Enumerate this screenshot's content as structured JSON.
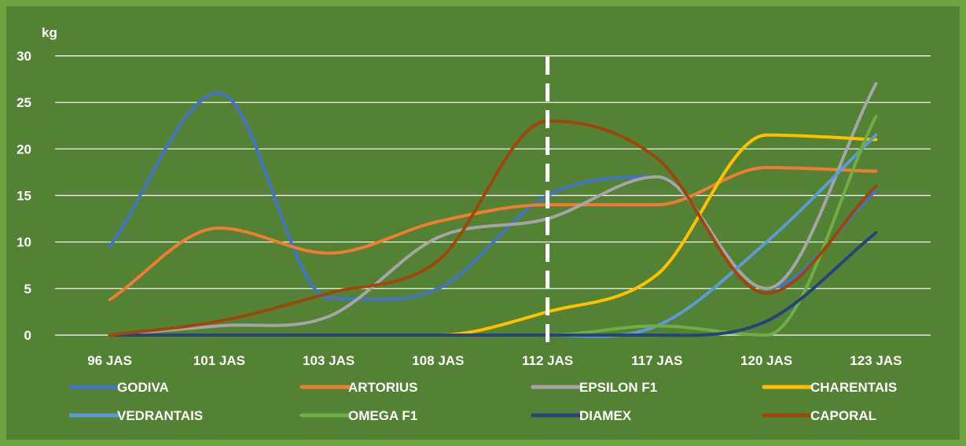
{
  "chart_data": {
    "type": "line",
    "smooth": true,
    "ylabel": "kg",
    "ylim": [
      0,
      30
    ],
    "yticks": [
      0,
      5,
      10,
      15,
      20,
      25,
      30
    ],
    "grid": true,
    "legend_position": "bottom",
    "categories": [
      "96 JAS",
      "101 JAS",
      "103 JAS",
      "108 JAS",
      "112 JAS",
      "117 JAS",
      "120 JAS",
      "123 JAS"
    ],
    "marker_category": "112 JAS",
    "background": "#548235",
    "series": [
      {
        "name": "GODIVA",
        "color": "#4472c4",
        "values": [
          9.5,
          26,
          4,
          5,
          15,
          17,
          5,
          15.5
        ]
      },
      {
        "name": "ARTORIUS",
        "color": "#ed7d31",
        "values": [
          3.8,
          11.5,
          8.8,
          12.2,
          14,
          14,
          18,
          17.6
        ]
      },
      {
        "name": "EPSILON F1",
        "color": "#a5a5a5",
        "values": [
          0,
          1,
          2,
          10.5,
          12.5,
          17,
          5,
          27
        ]
      },
      {
        "name": "CHARENTAIS",
        "color": "#ffc000",
        "values": [
          0,
          0,
          0,
          0,
          2.5,
          6.5,
          21.5,
          21
        ]
      },
      {
        "name": "VEDRANTAIS",
        "color": "#5b9bd5",
        "values": [
          0,
          0,
          0,
          0,
          0,
          1,
          10,
          21.5
        ]
      },
      {
        "name": "OMEGA F1",
        "color": "#70ad47",
        "values": [
          0,
          0,
          0,
          0,
          0,
          1,
          0,
          23.5
        ]
      },
      {
        "name": "DIAMEX",
        "color": "#264478",
        "values": [
          0,
          0,
          0,
          0,
          0,
          0,
          1.5,
          11
        ]
      },
      {
        "name": "CAPORAL",
        "color": "#9e480e",
        "values": [
          0,
          1.5,
          4.5,
          8,
          23,
          19,
          4.5,
          16
        ]
      }
    ]
  }
}
